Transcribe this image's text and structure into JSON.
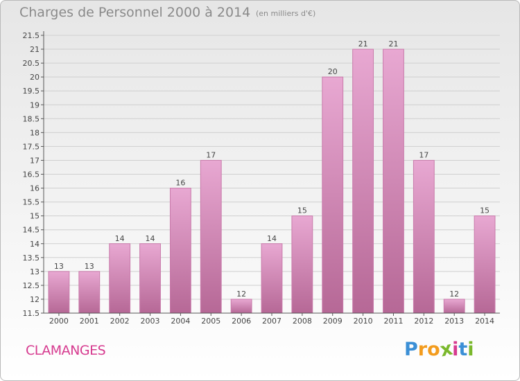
{
  "header": {
    "title": "Charges de Personnel 2000 à 2014",
    "unit": "(en milliers d'€)"
  },
  "footer": {
    "commune": "CLAMANGES",
    "logo": "Proxiti",
    "logo_letters": [
      "P",
      "r",
      "o",
      "x",
      "i",
      "t",
      "i"
    ],
    "logo_colors": [
      "#3b8fd6",
      "#f39c1e",
      "#f39c1e",
      "#7ab82c",
      "#d63a8f",
      "#3b8fd6",
      "#7ab82c"
    ]
  },
  "colors": {
    "bar_top": "#e8a8d2",
    "bar_bottom": "#b66896",
    "bar_edge": "#c97bab",
    "grid": "#cfcfcf",
    "axis": "#555555"
  },
  "chart_data": {
    "type": "bar",
    "title": "Charges de Personnel 2000 à 2014",
    "subtitle": "(en milliers d'€)",
    "xlabel": "",
    "ylabel": "",
    "categories": [
      "2000",
      "2001",
      "2002",
      "2003",
      "2004",
      "2005",
      "2006",
      "2007",
      "2008",
      "2009",
      "2010",
      "2011",
      "2012",
      "2013",
      "2014"
    ],
    "values": [
      13,
      13,
      14,
      14,
      16,
      17,
      12,
      14,
      15,
      20,
      21,
      21,
      17,
      12,
      15
    ],
    "data_labels": [
      "13",
      "13",
      "14",
      "14",
      "16",
      "17",
      "12",
      "14",
      "15",
      "20",
      "21",
      "21",
      "17",
      "12",
      "15"
    ],
    "ylim": [
      11.5,
      21.5
    ],
    "yticks": [
      "11.5",
      "12",
      "12.5",
      "13",
      "13.5",
      "14",
      "14.5",
      "15",
      "15.5",
      "16",
      "16.5",
      "17",
      "17.5",
      "18",
      "18.5",
      "19",
      "19.5",
      "20",
      "20.5",
      "21",
      "21.5"
    ],
    "grid": true,
    "legend": "none"
  }
}
